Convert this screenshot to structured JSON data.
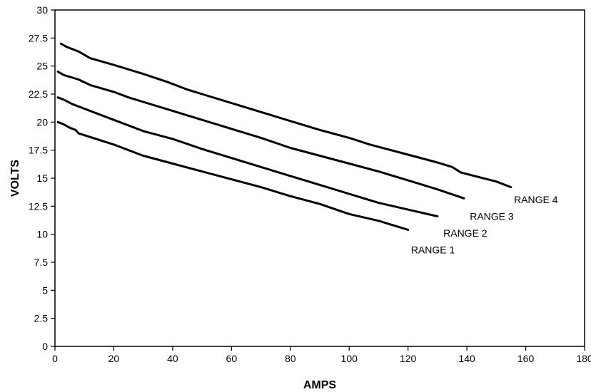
{
  "chart_data": {
    "type": "line",
    "title": "",
    "xlabel": "AMPS",
    "ylabel": "VOLTS",
    "xlim": [
      0,
      180
    ],
    "ylim": [
      0,
      30
    ],
    "x_ticks": [
      "0",
      "20",
      "40",
      "60",
      "80",
      "100",
      "120",
      "140",
      "160",
      "180"
    ],
    "y_ticks": [
      "0",
      "2.5",
      "5",
      "7.5",
      "10",
      "12.5",
      "15",
      "17.5",
      "20",
      "22.5",
      "25",
      "27.5",
      "30"
    ],
    "grid": false,
    "legend": "none",
    "line_color": "#000000",
    "series": [
      {
        "name": "RANGE 1",
        "points": [
          [
            1,
            20
          ],
          [
            3,
            19.8
          ],
          [
            5,
            19.5
          ],
          [
            7,
            19.3
          ],
          [
            8,
            19
          ],
          [
            20,
            18
          ],
          [
            30,
            17
          ],
          [
            40,
            16.3
          ],
          [
            50,
            15.6
          ],
          [
            60,
            14.9
          ],
          [
            70,
            14.2
          ],
          [
            80,
            13.4
          ],
          [
            90,
            12.7
          ],
          [
            100,
            11.8
          ],
          [
            110,
            11.2
          ],
          [
            120,
            10.4
          ]
        ]
      },
      {
        "name": "RANGE 2",
        "points": [
          [
            1,
            22.2
          ],
          [
            3,
            22
          ],
          [
            6,
            21.6
          ],
          [
            10,
            21.2
          ],
          [
            20,
            20.2
          ],
          [
            30,
            19.2
          ],
          [
            40,
            18.5
          ],
          [
            50,
            17.6
          ],
          [
            60,
            16.8
          ],
          [
            70,
            16
          ],
          [
            80,
            15.2
          ],
          [
            90,
            14.4
          ],
          [
            100,
            13.6
          ],
          [
            110,
            12.8
          ],
          [
            120,
            12.2
          ],
          [
            130,
            11.6
          ]
        ]
      },
      {
        "name": "RANGE 3",
        "points": [
          [
            1,
            24.5
          ],
          [
            3,
            24.2
          ],
          [
            8,
            23.8
          ],
          [
            12,
            23.3
          ],
          [
            20,
            22.7
          ],
          [
            25,
            22.2
          ],
          [
            30,
            21.8
          ],
          [
            40,
            21
          ],
          [
            50,
            20.2
          ],
          [
            60,
            19.4
          ],
          [
            70,
            18.6
          ],
          [
            80,
            17.7
          ],
          [
            90,
            17
          ],
          [
            100,
            16.3
          ],
          [
            110,
            15.6
          ],
          [
            120,
            14.8
          ],
          [
            130,
            14
          ],
          [
            139,
            13.2
          ]
        ]
      },
      {
        "name": "RANGE 4",
        "points": [
          [
            2,
            27
          ],
          [
            4,
            26.7
          ],
          [
            8,
            26.3
          ],
          [
            12,
            25.7
          ],
          [
            20,
            25.1
          ],
          [
            30,
            24.3
          ],
          [
            38,
            23.6
          ],
          [
            40,
            23.4
          ],
          [
            45,
            22.9
          ],
          [
            50,
            22.5
          ],
          [
            60,
            21.7
          ],
          [
            70,
            20.9
          ],
          [
            80,
            20.1
          ],
          [
            90,
            19.3
          ],
          [
            100,
            18.6
          ],
          [
            107,
            18
          ],
          [
            120,
            17.1
          ],
          [
            130,
            16.4
          ],
          [
            135,
            16
          ],
          [
            138,
            15.5
          ],
          [
            150,
            14.7
          ],
          [
            155,
            14.2
          ]
        ]
      }
    ],
    "annotations": [
      {
        "text": "RANGE 1",
        "x": 121,
        "y": 8.6
      },
      {
        "text": "RANGE 2",
        "x": 132,
        "y": 10.1
      },
      {
        "text": "RANGE 3",
        "x": 141,
        "y": 11.6
      },
      {
        "text": "RANGE 4",
        "x": 156,
        "y": 13.1
      }
    ]
  }
}
